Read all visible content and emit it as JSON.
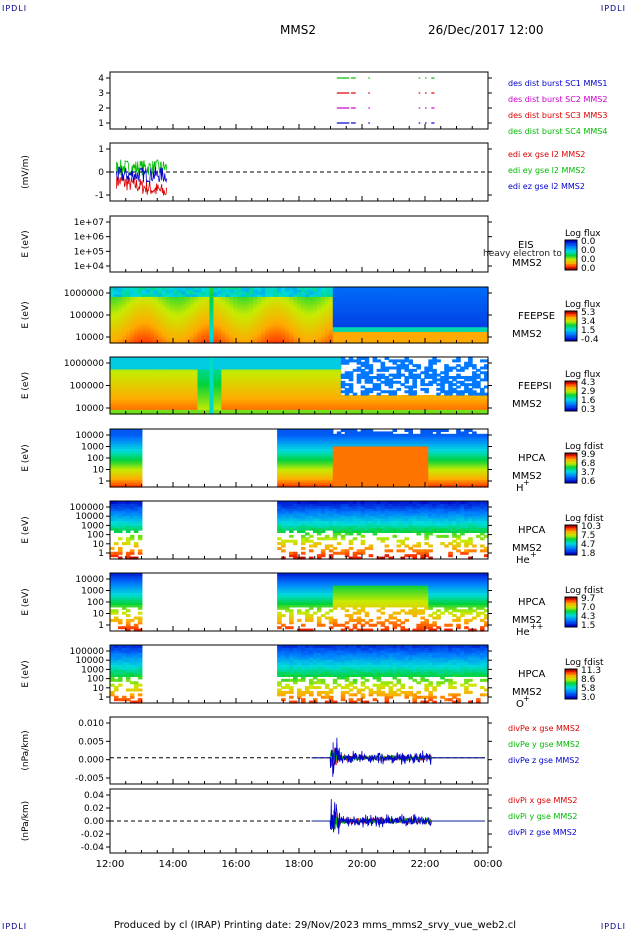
{
  "corner_label": "IPDLI",
  "header": {
    "spacecraft": "MMS2",
    "datetime": "26/Dec/2017 12:00"
  },
  "footer": {
    "text": "Produced by cl (IRAP)   Printing date: 29/Nov/2023   mms_mms2_srvy_vue_web2.cl"
  },
  "x_ticks": [
    "12:00",
    "14:00",
    "16:00",
    "18:00",
    "20:00",
    "22:00",
    "00:00"
  ],
  "panels": [
    {
      "id": "burst",
      "type": "line",
      "ylabel": "",
      "yticks": [
        "4",
        "3",
        "2",
        "1"
      ],
      "legend": [
        {
          "text": "des dist burst SC1 MMS1",
          "color": "#0000cc"
        },
        {
          "text": "des dist burst SC2 MMS2",
          "color": "#cc00cc"
        },
        {
          "text": "des dist burst SC3 MMS3",
          "color": "#dd0000"
        },
        {
          "text": "des dist burst SC4 MMS4",
          "color": "#00bb00"
        }
      ],
      "intervals_hours": [
        [
          19.2,
          19.6
        ],
        [
          19.65,
          19.8
        ],
        [
          20.2,
          20.25
        ],
        [
          21.8,
          21.85
        ],
        [
          22.0,
          22.05
        ],
        [
          22.2,
          22.3
        ]
      ]
    },
    {
      "id": "edi",
      "type": "line",
      "ylabel": "(mV/m)",
      "yticks": [
        "1",
        "0",
        "-1"
      ],
      "ylim": [
        -2,
        2
      ],
      "legend": [
        {
          "text": "edi ex gse l2 MMS2",
          "color": "#dd0000"
        },
        {
          "text": "edi ey gse l2 MMS2",
          "color": "#00bb00"
        },
        {
          "text": "edi ez gse l2 MMS2",
          "color": "#0000cc"
        }
      ]
    },
    {
      "id": "eis",
      "type": "heatmap",
      "ylabel": "E (eV)",
      "yticks": [
        "1e+07",
        "1e+06",
        "1e+05",
        "1e+04"
      ],
      "instrument": "EIS",
      "sc": "MMS2",
      "overlay": "heavy electron to",
      "cb_title": "Log flux",
      "cb_ticks": [
        "0.0",
        "0.0",
        "0.0",
        "0.0"
      ]
    },
    {
      "id": "feepse",
      "type": "heatmap",
      "ylabel": "E (eV)",
      "yticks": [
        "1000000",
        "100000",
        "10000"
      ],
      "instrument": "FEEPSE",
      "sc": "MMS2",
      "cb_title": "Log flux",
      "cb_ticks": [
        "5.3",
        "3.4",
        "1.5",
        "-0.4"
      ]
    },
    {
      "id": "feepsi",
      "type": "heatmap",
      "ylabel": "E (eV)",
      "yticks": [
        "1000000",
        "100000",
        "10000"
      ],
      "instrument": "FEEPSI",
      "sc": "MMS2",
      "cb_title": "Log flux",
      "cb_ticks": [
        "4.3",
        "2.9",
        "1.6",
        "0.3"
      ]
    },
    {
      "id": "hpca_h",
      "type": "heatmap",
      "ylabel": "E (eV)",
      "yticks": [
        "10000",
        "1000",
        "100",
        "10",
        "1"
      ],
      "instrument": "HPCA",
      "sc": "MMS2",
      "species": "H",
      "charge": "+",
      "cb_title": "Log fdist",
      "cb_ticks": [
        "9.9",
        "6.8",
        "3.7",
        "0.6"
      ]
    },
    {
      "id": "hpca_he",
      "type": "heatmap",
      "ylabel": "E (eV)",
      "yticks": [
        "100000",
        "10000",
        "1000",
        "100",
        "10",
        "1"
      ],
      "instrument": "HPCA",
      "sc": "MMS2",
      "species": "He",
      "charge": "+",
      "cb_title": "Log fdist",
      "cb_ticks": [
        "10.3",
        "7.5",
        "4.7",
        "1.8"
      ]
    },
    {
      "id": "hpca_hepp",
      "type": "heatmap",
      "ylabel": "E (eV)",
      "yticks": [
        "10000",
        "1000",
        "100",
        "10",
        "1"
      ],
      "instrument": "HPCA",
      "sc": "MMS2",
      "species": "He",
      "charge": "++",
      "cb_title": "Log fdist",
      "cb_ticks": [
        "9.7",
        "7.0",
        "4.3",
        "1.5"
      ]
    },
    {
      "id": "hpca_o",
      "type": "heatmap",
      "ylabel": "E (eV)",
      "yticks": [
        "100000",
        "10000",
        "1000",
        "100",
        "10",
        "1"
      ],
      "instrument": "HPCA",
      "sc": "MMS2",
      "species": "O",
      "charge": "+",
      "cb_title": "Log fdist",
      "cb_ticks": [
        "11.3",
        "8.6",
        "5.8",
        "3.0"
      ]
    },
    {
      "id": "divpe",
      "type": "line",
      "ylabel": "(nPa/km)",
      "yticks": [
        "0.010",
        "0.005",
        "0.000",
        "-0.005"
      ],
      "ylim": [
        -0.009,
        0.014
      ],
      "legend": [
        {
          "text": "divPe x gse MMS2",
          "color": "#dd0000"
        },
        {
          "text": "divPe y gse MMS2",
          "color": "#00bb00"
        },
        {
          "text": "divPe z gse MMS2",
          "color": "#0000cc"
        }
      ]
    },
    {
      "id": "divpi",
      "type": "line",
      "ylabel": "(nPa/km)",
      "yticks": [
        "0.04",
        "0.02",
        "0.00",
        "-0.02",
        "-0.04"
      ],
      "ylim": [
        -0.055,
        0.055
      ],
      "legend": [
        {
          "text": "divPi x gse MMS2",
          "color": "#dd0000"
        },
        {
          "text": "divPi y gse MMS2",
          "color": "#00bb00"
        },
        {
          "text": "divPi z gse MMS2",
          "color": "#0000cc"
        }
      ]
    }
  ],
  "chart_data": {
    "type": "heatmap",
    "x_axis": {
      "start": "12:00",
      "end": "00:00",
      "ticks": [
        "12:00",
        "14:00",
        "16:00",
        "18:00",
        "20:00",
        "22:00",
        "00:00"
      ]
    },
    "panels": [
      "burst",
      "edi",
      "eis",
      "feepse",
      "feepsi",
      "hpca_h",
      "hpca_he",
      "hpca_hepp",
      "hpca_o",
      "divpe",
      "divpi"
    ],
    "edi_coverage_hours": [
      12.2,
      13.8
    ],
    "hpca_coverage_hours": [
      [
        12.0,
        13.05
      ],
      [
        17.35,
        24.0
      ]
    ],
    "feeps_regime_change_hour": 19.1,
    "divp_activity_hours": [
      19.0,
      22.2
    ],
    "colorscale": "rainbow"
  }
}
